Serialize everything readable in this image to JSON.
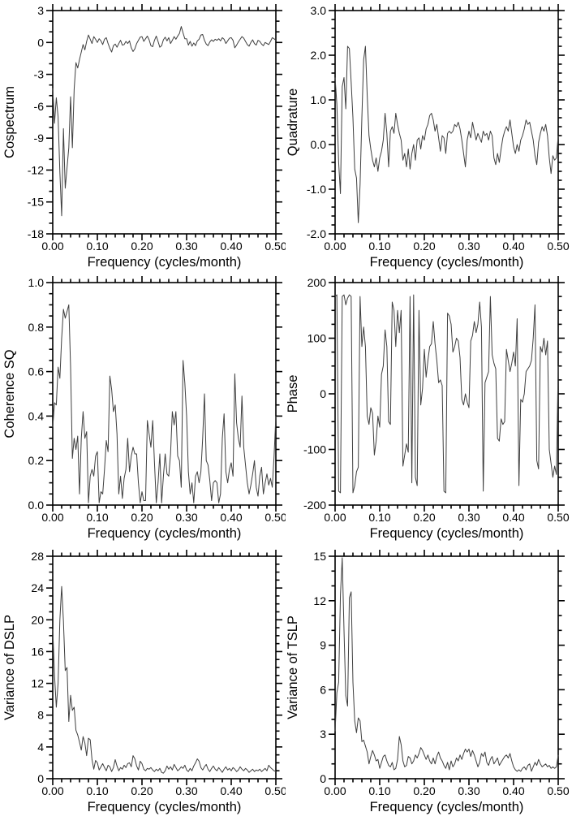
{
  "figure": {
    "background": "#ffffff",
    "axis_color": "#000000",
    "line_color": "#3f3f3f",
    "text_color": "#000000",
    "xlabel": "Frequency (cycles/month)"
  },
  "chart_data": [
    {
      "type": "line",
      "title": "",
      "ylabel": "Cospectrum",
      "xlabel": "Frequency (cycles/month)",
      "xlim": [
        0,
        0.5
      ],
      "ylim": [
        -18,
        3
      ],
      "x_major_step": 0.1,
      "x_minor_step": 0.02,
      "y_major_step": 3,
      "y_minor_step": 1,
      "x_decimals": 2,
      "y_decimals": 0,
      "grid": false,
      "legend": "none",
      "x_start": 0,
      "x_step": 0.004,
      "values": [
        -4.3,
        -7.6,
        -5.2,
        -7.0,
        -12.2,
        -16.3,
        -8.1,
        -13.7,
        -11.8,
        -9.9,
        -5.1,
        -9.9,
        -4.4,
        -1.9,
        -2.4,
        -1.6,
        -0.9,
        -0.2,
        -0.7,
        0.1,
        0.7,
        0.3,
        -0.1,
        0.55,
        0.3,
        0.0,
        0.35,
        0.15,
        -0.2,
        0.3,
        0.45,
        -0.1,
        -0.55,
        -0.9,
        -0.3,
        -0.15,
        -0.45,
        -0.1,
        0.2,
        -0.25,
        -0.2,
        0.1,
        -0.1,
        0.15,
        -0.5,
        -0.85,
        -0.6,
        -0.1,
        0.2,
        0.5,
        0.55,
        0.1,
        0.35,
        0.6,
        0.25,
        -0.3,
        -0.4,
        0.2,
        0.6,
        0.1,
        -0.45,
        -0.3,
        0.25,
        0.5,
        0.15,
        0.45,
        -0.1,
        0.2,
        0.55,
        0.3,
        0.6,
        0.85,
        1.5,
        0.9,
        0.35,
        0.35,
        -0.25,
        0.1,
        -0.35,
        -0.05,
        -0.3,
        0.15,
        0.3,
        0.7,
        0.75,
        0.2,
        -0.15,
        -0.3,
        0.05,
        0.25,
        0.1,
        0.3,
        0.2,
        0.35,
        0.15,
        0.45,
        0.3,
        -0.1,
        0.15,
        0.4,
        0.45,
        0.2,
        -0.5,
        -0.25,
        0.05,
        0.3,
        0.55,
        0.4,
        0.1,
        -0.2,
        -0.35,
        0.0,
        0.25,
        -0.1,
        -0.25,
        0.2,
        0.1,
        -0.15,
        -0.3,
        0.0,
        -0.1,
        -0.2,
        0.1,
        0.45,
        0.35,
        0.2
      ]
    },
    {
      "type": "line",
      "title": "",
      "ylabel": "Quadrature",
      "xlabel": "Frequency (cycles/month)",
      "xlim": [
        0,
        0.5
      ],
      "ylim": [
        -2,
        3
      ],
      "x_major_step": 0.1,
      "x_minor_step": 0.02,
      "y_major_step": 1,
      "y_minor_step": 0.2,
      "x_decimals": 2,
      "y_decimals": 1,
      "grid": false,
      "legend": "none",
      "x_start": 0,
      "x_step": 0.004,
      "values": [
        1.5,
        0.9,
        -0.4,
        -1.1,
        1.3,
        1.5,
        0.8,
        2.2,
        2.15,
        1.4,
        0.6,
        -0.55,
        -0.75,
        -1.75,
        -0.9,
        0.6,
        1.9,
        2.2,
        1.1,
        0.2,
        -0.1,
        -0.35,
        -0.5,
        -0.3,
        -0.6,
        -0.3,
        -0.15,
        0.1,
        0.7,
        0.25,
        -0.5,
        0.3,
        0.4,
        0.25,
        0.7,
        0.45,
        0.25,
        0.1,
        -0.35,
        -0.2,
        -0.5,
        -0.1,
        -0.55,
        -0.2,
        0.0,
        -0.35,
        0.1,
        0.15,
        -0.1,
        0.2,
        0.1,
        0.35,
        0.45,
        0.65,
        0.7,
        0.55,
        0.3,
        0.45,
        0.15,
        -0.15,
        0.2,
        0.15,
        -0.2,
        0.25,
        0.3,
        0.25,
        0.3,
        0.45,
        0.4,
        0.5,
        0.35,
        0.1,
        -0.2,
        -0.5,
        0.1,
        0.3,
        0.15,
        0.5,
        0.3,
        0.1,
        0.25,
        0.15,
        0.05,
        0.3,
        0.2,
        0.25,
        0.1,
        0.3,
        0.2,
        -0.3,
        -0.45,
        -0.2,
        -0.4,
        -0.1,
        0.15,
        0.3,
        0.4,
        0.3,
        0.55,
        0.25,
        -0.05,
        -0.2,
        0.0,
        -0.15,
        0.1,
        0.2,
        0.35,
        0.55,
        0.45,
        0.5,
        0.3,
        0.1,
        -0.25,
        -0.45,
        0.05,
        0.25,
        0.4,
        0.3,
        0.45,
        0.2,
        -0.3,
        -0.65,
        -0.25,
        -0.35,
        -0.3,
        0.2
      ]
    },
    {
      "type": "line",
      "title": "",
      "ylabel": "Coherence SQ",
      "xlabel": "Frequency (cycles/month)",
      "xlim": [
        0,
        0.5
      ],
      "ylim": [
        0,
        1
      ],
      "x_major_step": 0.1,
      "x_minor_step": 0.02,
      "y_major_step": 0.2,
      "y_minor_step": 0.05,
      "x_decimals": 2,
      "y_decimals": 1,
      "grid": false,
      "legend": "none",
      "x_start": 0,
      "x_step": 0.004,
      "values": [
        0.35,
        0.46,
        0.45,
        0.62,
        0.57,
        0.75,
        0.88,
        0.84,
        0.87,
        0.9,
        0.62,
        0.21,
        0.3,
        0.25,
        0.31,
        0.05,
        0.3,
        0.42,
        0.3,
        0.33,
        0.01,
        0.13,
        0.16,
        0.13,
        0.22,
        0.24,
        0.01,
        0.06,
        0.05,
        0.16,
        0.29,
        0.24,
        0.58,
        0.52,
        0.42,
        0.45,
        0.32,
        0.05,
        0.13,
        0.03,
        0.12,
        0.16,
        0.3,
        0.15,
        0.22,
        0.26,
        0.23,
        0.23,
        0.1,
        0.01,
        0.06,
        0.02,
        0.02,
        0.38,
        0.32,
        0.26,
        0.38,
        0.19,
        0.01,
        0.1,
        0.23,
        0.01,
        0.13,
        0.23,
        0.14,
        0.13,
        0.23,
        0.42,
        0.36,
        0.42,
        0.22,
        0.2,
        0.08,
        0.65,
        0.55,
        0.4,
        0.15,
        0.05,
        0.1,
        0.01,
        0.13,
        0.15,
        0.1,
        0.15,
        0.3,
        0.5,
        0.2,
        0.18,
        0.11,
        0.02,
        0.1,
        0.11,
        0.1,
        0.01,
        0.05,
        0.3,
        0.41,
        0.15,
        0.1,
        0.16,
        0.19,
        0.13,
        0.59,
        0.37,
        0.3,
        0.26,
        0.49,
        0.26,
        0.18,
        0.1,
        0.05,
        0.09,
        0.14,
        0.2,
        0.08,
        0.04,
        0.13,
        0.17,
        0.05,
        0.1,
        0.14,
        0.09,
        0.12,
        0.08,
        0.22,
        0.4
      ]
    },
    {
      "type": "line",
      "title": "",
      "ylabel": "Phase",
      "xlabel": "Frequency (cycles/month)",
      "xlim": [
        0,
        0.5
      ],
      "ylim": [
        -200,
        200
      ],
      "x_major_step": 0.1,
      "x_minor_step": 0.02,
      "y_major_step": 100,
      "y_minor_step": 25,
      "x_decimals": 2,
      "y_decimals": 0,
      "grid": false,
      "legend": "none",
      "x_start": 0,
      "x_step": 0.004,
      "values": [
        175,
        178,
        -175,
        -178,
        175,
        178,
        160,
        172,
        178,
        175,
        -178,
        -165,
        -140,
        -132,
        175,
        85,
        120,
        85,
        -40,
        -55,
        -25,
        -35,
        -110,
        -85,
        -40,
        -60,
        35,
        50,
        115,
        85,
        -50,
        -55,
        165,
        150,
        85,
        150,
        110,
        150,
        -130,
        -110,
        -90,
        -105,
        175,
        -160,
        178,
        -150,
        -165,
        150,
        -20,
        10,
        80,
        30,
        60,
        85,
        90,
        130,
        90,
        60,
        20,
        25,
        15,
        -175,
        -178,
        145,
        140,
        125,
        75,
        85,
        100,
        95,
        65,
        -10,
        -20,
        0,
        -15,
        -25,
        95,
        105,
        130,
        110,
        125,
        165,
        120,
        -175,
        20,
        30,
        40,
        175,
        70,
        55,
        45,
        -80,
        -85,
        -45,
        -55,
        -50,
        80,
        60,
        40,
        55,
        75,
        50,
        135,
        -165,
        -10,
        -15,
        0,
        40,
        45,
        50,
        60,
        100,
        160,
        -120,
        -135,
        85,
        75,
        100,
        70,
        95,
        -100,
        -125,
        -150,
        -130,
        -145,
        50
      ]
    },
    {
      "type": "line",
      "title": "",
      "ylabel": "Variance of DSLP",
      "xlabel": "Frequency (cycles/month)",
      "xlim": [
        0,
        0.5
      ],
      "ylim": [
        0,
        28
      ],
      "x_major_step": 0.1,
      "x_minor_step": 0.02,
      "y_major_step": 4,
      "y_minor_step": 1,
      "x_decimals": 2,
      "y_decimals": 0,
      "grid": false,
      "legend": "none",
      "x_start": 0,
      "x_step": 0.004,
      "values": [
        18.8,
        13.0,
        9.0,
        12.0,
        20.0,
        24.2,
        19.8,
        13.6,
        14.0,
        7.2,
        10.5,
        8.6,
        9.0,
        6.1,
        5.5,
        4.6,
        3.6,
        5.3,
        4.5,
        2.9,
        5.1,
        4.9,
        2.4,
        1.2,
        2.3,
        2.0,
        1.1,
        1.5,
        1.9,
        1.4,
        1.0,
        1.7,
        1.5,
        0.9,
        1.4,
        2.4,
        1.6,
        1.0,
        1.4,
        1.2,
        1.7,
        1.4,
        1.9,
        2.0,
        1.5,
        2.9,
        2.5,
        1.6,
        1.1,
        2.2,
        1.9,
        1.2,
        1.0,
        1.3,
        1.2,
        1.4,
        1.1,
        0.9,
        1.2,
        1.0,
        1.3,
        0.8,
        0.7,
        1.0,
        1.6,
        1.2,
        1.5,
        1.1,
        1.8,
        1.4,
        1.0,
        1.2,
        1.5,
        1.3,
        1.7,
        1.1,
        0.9,
        1.3,
        1.0,
        1.6,
        2.0,
        2.5,
        2.2,
        1.4,
        1.1,
        1.5,
        1.8,
        1.2,
        0.9,
        1.3,
        1.6,
        1.2,
        1.0,
        1.4,
        1.1,
        0.8,
        1.2,
        1.5,
        1.1,
        1.3,
        1.0,
        1.4,
        1.2,
        0.9,
        1.1,
        1.5,
        1.2,
        1.0,
        1.3,
        1.1,
        0.8,
        1.0,
        1.2,
        0.9,
        1.1,
        1.0,
        1.2,
        0.9,
        1.1,
        1.3,
        1.0,
        1.7,
        1.4,
        1.2,
        1.0,
        0.9
      ]
    },
    {
      "type": "line",
      "title": "",
      "ylabel": "Variance of TSLP",
      "xlabel": "Frequency (cycles/month)",
      "xlim": [
        0,
        0.5
      ],
      "ylim": [
        0,
        15
      ],
      "x_major_step": 0.1,
      "x_minor_step": 0.02,
      "y_major_step": 3,
      "y_minor_step": 1,
      "x_decimals": 2,
      "y_decimals": 0,
      "grid": false,
      "legend": "none",
      "x_start": 0,
      "x_step": 0.004,
      "values": [
        3.2,
        5.8,
        6.5,
        12.4,
        14.9,
        10.0,
        5.6,
        4.9,
        12.2,
        12.6,
        6.5,
        3.9,
        3.1,
        4.1,
        3.9,
        2.5,
        2.6,
        2.2,
        1.8,
        1.0,
        1.5,
        1.9,
        1.6,
        1.2,
        1.3,
        0.7,
        1.1,
        1.5,
        1.6,
        1.2,
        0.9,
        0.8,
        1.1,
        0.6,
        0.7,
        1.3,
        2.85,
        2.3,
        1.2,
        0.8,
        0.9,
        1.5,
        1.4,
        1.0,
        1.2,
        1.6,
        1.4,
        1.7,
        2.1,
        1.9,
        1.6,
        1.3,
        1.6,
        1.2,
        1.0,
        1.4,
        1.0,
        1.5,
        1.8,
        1.4,
        1.2,
        0.9,
        0.7,
        1.1,
        0.6,
        1.2,
        0.8,
        1.0,
        1.4,
        1.2,
        1.6,
        1.3,
        1.7,
        2.0,
        1.8,
        2.0,
        1.5,
        1.9,
        1.6,
        1.2,
        0.8,
        1.1,
        1.7,
        1.5,
        1.8,
        1.1,
        0.9,
        1.3,
        1.5,
        1.0,
        1.2,
        1.4,
        0.9,
        1.1,
        1.3,
        1.5,
        1.6,
        1.4,
        1.7,
        1.2,
        0.8,
        0.6,
        0.5,
        0.6,
        0.5,
        0.7,
        0.8,
        0.6,
        0.9,
        1.0,
        0.5,
        0.8,
        1.1,
        0.9,
        1.3,
        1.0,
        0.8,
        0.9,
        1.0,
        0.8,
        0.9,
        0.7,
        0.8,
        0.7,
        0.8,
        1.6
      ]
    }
  ]
}
